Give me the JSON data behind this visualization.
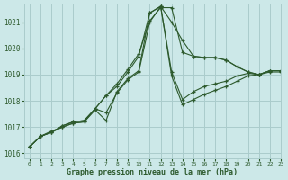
{
  "bg_color": "#cce8e8",
  "grid_color": "#aacccc",
  "line_color": "#2d5a2d",
  "xlabel": "Graphe pression niveau de la mer (hPa)",
  "xlim": [
    -0.5,
    23
  ],
  "ylim": [
    1015.8,
    1021.7
  ],
  "yticks": [
    1016,
    1017,
    1018,
    1019,
    1020,
    1021
  ],
  "xticks": [
    0,
    1,
    2,
    3,
    4,
    5,
    6,
    7,
    8,
    9,
    10,
    11,
    12,
    13,
    14,
    15,
    16,
    17,
    18,
    19,
    20,
    21,
    22,
    23
  ],
  "series": [
    [
      1016.25,
      1016.65,
      1016.8,
      1017.05,
      1017.2,
      1017.25,
      1017.7,
      1018.2,
      1018.65,
      1019.2,
      1019.8,
      1021.05,
      1021.55,
      1021.55,
      1019.85,
      1019.7,
      1019.65,
      1019.65,
      1019.55,
      1019.3,
      1019.1,
      1019.0,
      1019.15,
      1019.15
    ],
    [
      1016.25,
      1016.65,
      1016.8,
      1017.05,
      1017.2,
      1017.25,
      1017.7,
      1018.2,
      1018.55,
      1019.1,
      1019.7,
      1021.35,
      1021.6,
      1021.0,
      1020.3,
      1019.7,
      1019.65,
      1019.65,
      1019.55,
      1019.3,
      1019.1,
      1019.0,
      1019.15,
      1019.15
    ],
    [
      1016.25,
      1016.65,
      1016.8,
      1017.0,
      1017.15,
      1017.2,
      1017.65,
      1017.25,
      1018.35,
      1018.85,
      1019.15,
      1021.35,
      1021.6,
      1019.1,
      1018.05,
      1018.35,
      1018.55,
      1018.65,
      1018.75,
      1018.95,
      1019.05,
      1019.0,
      1019.15,
      1019.15
    ],
    [
      1016.25,
      1016.65,
      1016.85,
      1017.0,
      1017.15,
      1017.2,
      1017.7,
      1017.55,
      1018.3,
      1018.8,
      1019.1,
      1021.0,
      1021.6,
      1018.95,
      1017.85,
      1018.05,
      1018.25,
      1018.4,
      1018.55,
      1018.75,
      1018.95,
      1019.0,
      1019.1,
      1019.1
    ]
  ]
}
